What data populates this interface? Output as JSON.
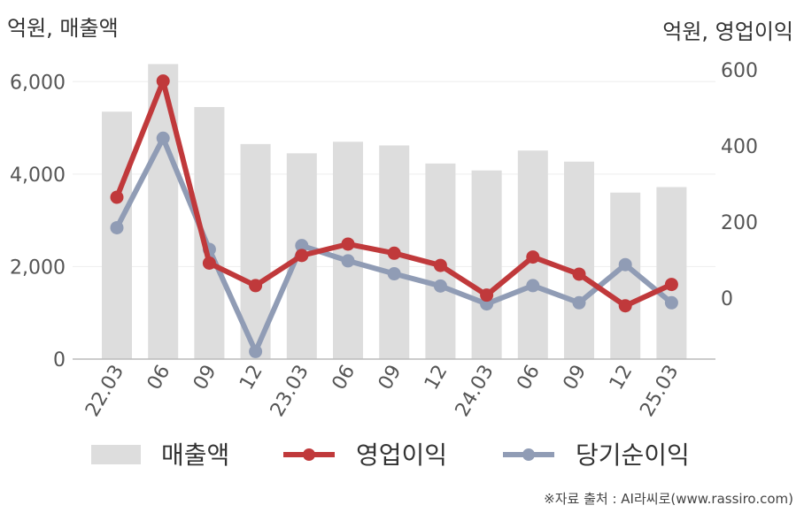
{
  "header": {
    "left_unit": "억원, 매출액",
    "right_unit": "억원, 영업이익"
  },
  "source": "※자료 출처 : AI라씨로(www.rassiro.com)",
  "colors": {
    "revenue": "#dddddd",
    "operating_profit": "#c0393b",
    "net_income": "#909cb5",
    "axis": "#bbbbbb",
    "grid": "#eeeeee"
  },
  "chart_data": {
    "type": "bar+line",
    "categories": [
      "22.03",
      "06",
      "09",
      "12",
      "23.03",
      "06",
      "09",
      "12",
      "24.03",
      "06",
      "09",
      "12",
      "25.03"
    ],
    "y_left": {
      "ticks": [
        "0",
        "2,000",
        "4,000",
        "6,000"
      ],
      "tick_values": [
        0,
        2000,
        4000,
        6000
      ],
      "range": [
        0,
        7000
      ]
    },
    "y_right": {
      "ticks": [
        "0",
        "200",
        "400",
        "600"
      ],
      "tick_values": [
        0,
        200,
        400,
        600
      ],
      "range": [
        -160,
        690
      ]
    },
    "series": [
      {
        "name": "매출액",
        "type": "bar",
        "axis": "left",
        "values": [
          5350,
          6380,
          5450,
          4650,
          4450,
          4700,
          4620,
          4230,
          4080,
          4510,
          4270,
          3600,
          3720
        ]
      },
      {
        "name": "영업이익",
        "type": "line",
        "axis": "right",
        "values": [
          265,
          570,
          92,
          33,
          112,
          142,
          118,
          86,
          8,
          108,
          63,
          -20,
          36
        ]
      },
      {
        "name": "당기순이익",
        "type": "line",
        "axis": "right",
        "values": [
          185,
          420,
          128,
          -140,
          138,
          98,
          64,
          32,
          -15,
          33,
          -12,
          88,
          -12
        ]
      }
    ],
    "grid": true,
    "legend_position": "bottom"
  }
}
